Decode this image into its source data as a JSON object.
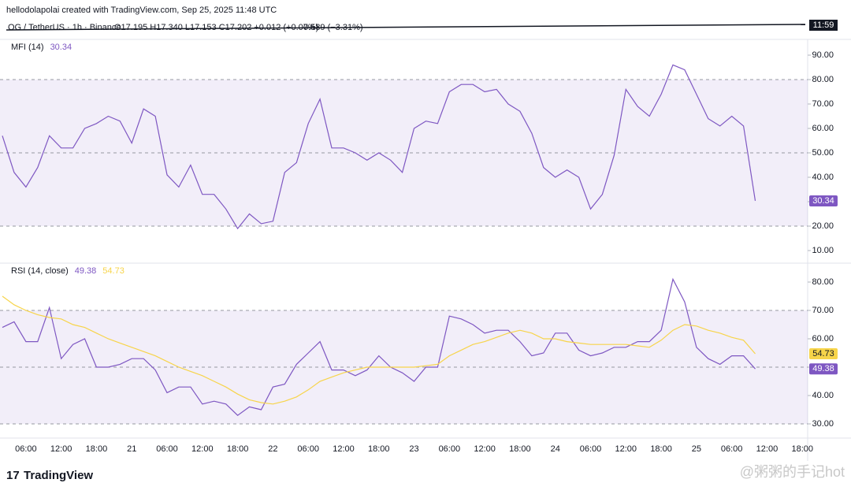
{
  "header": {
    "attribution": "hellodolapolai created with TradingView.com, Sep 25, 2025 11:48 UTC",
    "symbol": "OG / TetherUS · 1h · Binance",
    "ohlc": "O17.195 H17.340 L17.153 C17.202 +0.012 (+0.07%)",
    "change": "0.589 (−3.31%)",
    "time_label": "11:59"
  },
  "footer": {
    "logo": "TradingView",
    "watermark": "@粥粥的手记hot"
  },
  "chart_data": [
    {
      "type": "line",
      "title": "MFI (14)",
      "series": [
        {
          "color": "#7e57c2",
          "values": [
            57,
            42,
            36,
            44,
            57,
            52,
            52,
            60,
            62,
            65,
            63,
            54,
            68,
            65,
            41,
            36,
            45,
            33,
            33,
            27,
            19,
            25,
            21,
            22,
            42,
            46,
            62,
            72,
            52,
            52,
            50,
            47,
            50,
            47,
            42,
            60,
            63,
            62,
            75,
            78,
            78,
            75,
            76,
            70,
            67,
            58,
            44,
            40,
            43,
            40,
            27,
            33,
            49,
            76,
            69,
            65,
            74,
            86,
            84,
            74,
            64,
            61,
            65,
            61,
            30.34,
            null,
            null,
            null,
            null
          ]
        }
      ],
      "ylim": [
        5,
        95
      ],
      "yticks": [
        {
          "value": 10,
          "label": "10.00"
        },
        {
          "value": 20,
          "label": "20.00"
        },
        {
          "value": 30,
          "label": "30.00"
        },
        {
          "value": 40,
          "label": "40.00"
        },
        {
          "value": 50,
          "label": "50.00"
        },
        {
          "value": 60,
          "label": "60.00"
        },
        {
          "value": 70,
          "label": "70.00"
        },
        {
          "value": 80,
          "label": "80.00"
        },
        {
          "value": 90,
          "label": "90.00"
        }
      ],
      "band": [
        20,
        80
      ],
      "levels": [
        80,
        50,
        20
      ],
      "band_color": "#7e57c2"
    },
    {
      "type": "line",
      "title": "RSI (14, close)",
      "categories": [
        null,
        null,
        "06:00",
        null,
        null,
        "12:00",
        null,
        null,
        "18:00",
        null,
        null,
        "21",
        null,
        null,
        "06:00",
        null,
        null,
        "12:00",
        null,
        null,
        "18:00",
        null,
        null,
        "22",
        null,
        null,
        "06:00",
        null,
        null,
        "12:00",
        null,
        null,
        "18:00",
        null,
        null,
        "23",
        null,
        null,
        "06:00",
        null,
        null,
        "12:00",
        null,
        null,
        "18:00",
        null,
        null,
        "24",
        null,
        null,
        "06:00",
        null,
        null,
        "12:00",
        null,
        null,
        "18:00",
        null,
        null,
        "25",
        null,
        null,
        "06:00",
        null,
        null,
        "12:00",
        null,
        null,
        "18:00"
      ],
      "series": [
        {
          "color": "#7e57c2",
          "values": [
            64,
            66,
            59,
            59,
            71,
            53,
            58,
            60,
            50,
            50,
            51,
            53,
            53,
            49,
            41,
            43,
            43,
            37,
            38,
            37,
            33,
            36,
            35,
            43,
            44,
            51,
            55,
            59,
            49,
            49,
            47,
            49,
            54,
            50,
            48,
            45,
            50,
            50,
            68,
            67,
            65,
            62,
            63,
            63,
            59,
            54,
            55,
            62,
            62,
            56,
            54,
            55,
            57,
            57,
            59,
            59,
            63,
            81,
            73,
            57,
            53,
            51,
            54,
            54,
            49.38,
            null,
            null,
            null,
            null
          ]
        },
        {
          "color": "#f7d44a",
          "values": [
            75,
            72,
            70,
            68.5,
            67.5,
            67,
            65,
            64,
            62,
            60,
            58.5,
            57,
            55.5,
            54,
            52,
            50,
            48.5,
            47,
            45,
            43,
            40.5,
            38.5,
            37.5,
            37,
            38,
            39.5,
            42,
            45,
            46.5,
            48,
            49,
            50,
            50,
            50,
            50,
            50,
            50.5,
            51,
            54,
            56,
            58,
            59,
            60.5,
            62,
            63,
            62,
            60,
            60,
            59,
            58.5,
            58,
            58,
            58,
            58,
            57.5,
            57,
            59.5,
            63,
            65,
            64.5,
            63,
            62,
            60.5,
            59.5,
            54.73,
            null,
            null,
            null,
            null
          ]
        }
      ],
      "ylim": [
        25,
        85
      ],
      "yticks": [
        {
          "value": 30,
          "label": "30.00"
        },
        {
          "value": 40,
          "label": "40.00"
        },
        {
          "value": 50,
          "label": "50.00"
        },
        {
          "value": 60,
          "label": "60.00"
        },
        {
          "value": 70,
          "label": "70.00"
        },
        {
          "value": 80,
          "label": "80.00"
        }
      ],
      "band": [
        30,
        70
      ],
      "levels": [
        70,
        50,
        30
      ],
      "band_color": "#7e57c2"
    }
  ]
}
